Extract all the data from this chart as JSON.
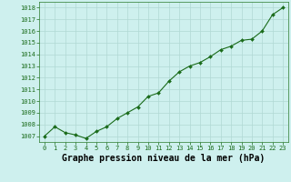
{
  "x": [
    0,
    1,
    2,
    3,
    4,
    5,
    6,
    7,
    8,
    9,
    10,
    11,
    12,
    13,
    14,
    15,
    16,
    17,
    18,
    19,
    20,
    21,
    22,
    23
  ],
  "y": [
    1007.0,
    1007.8,
    1007.3,
    1007.1,
    1006.8,
    1007.4,
    1007.8,
    1008.5,
    1009.0,
    1009.5,
    1010.4,
    1010.7,
    1011.7,
    1012.5,
    1013.0,
    1013.3,
    1013.8,
    1014.4,
    1014.7,
    1015.2,
    1015.3,
    1016.0,
    1017.4,
    1018.0
  ],
  "line_color": "#1a6b1a",
  "marker_color": "#1a6b1a",
  "bg_color": "#cef0ee",
  "grid_color": "#b0d8d4",
  "xlabel": "Graphe pression niveau de la mer (hPa)",
  "ylim": [
    1006.5,
    1018.5
  ],
  "yticks": [
    1007,
    1008,
    1009,
    1010,
    1011,
    1012,
    1013,
    1014,
    1015,
    1016,
    1017,
    1018
  ],
  "xticks": [
    0,
    1,
    2,
    3,
    4,
    5,
    6,
    7,
    8,
    9,
    10,
    11,
    12,
    13,
    14,
    15,
    16,
    17,
    18,
    19,
    20,
    21,
    22,
    23
  ],
  "tick_fontsize": 5.0,
  "xlabel_fontsize": 7.0,
  "marker_size": 2.0,
  "line_width": 0.8
}
